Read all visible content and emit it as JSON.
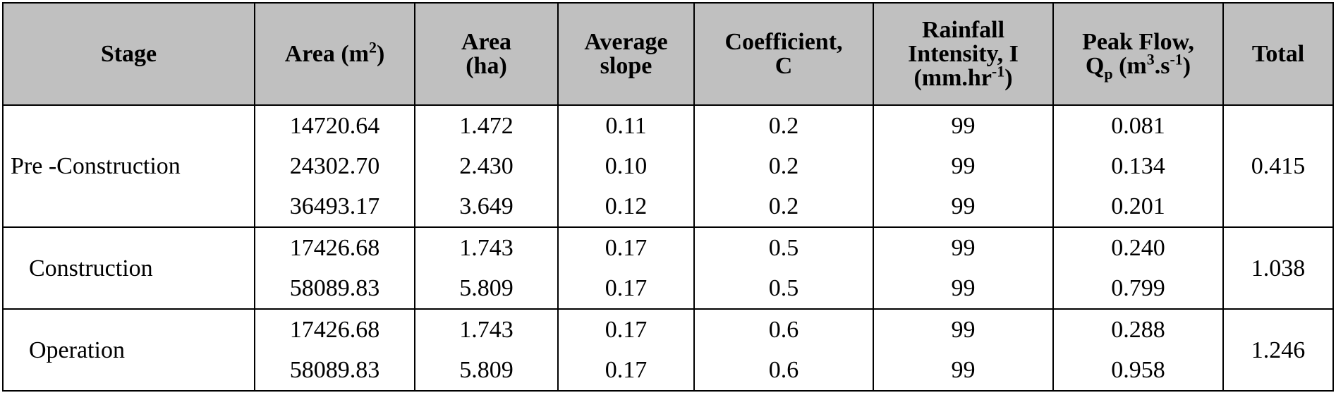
{
  "table": {
    "headers": [
      {
        "lines": [
          [
            {
              "text": "Stage"
            }
          ]
        ]
      },
      {
        "lines": [
          [
            {
              "text": "Area (m"
            },
            {
              "text": "2",
              "sup": true
            },
            {
              "text": ")"
            }
          ]
        ]
      },
      {
        "lines": [
          [
            {
              "text": "Area"
            }
          ],
          [
            {
              "text": "(ha)"
            }
          ]
        ]
      },
      {
        "lines": [
          [
            {
              "text": "Average"
            }
          ],
          [
            {
              "text": "slope"
            }
          ]
        ]
      },
      {
        "lines": [
          [
            {
              "text": "Coefficient,"
            }
          ],
          [
            {
              "text": "C"
            }
          ]
        ]
      },
      {
        "lines": [
          [
            {
              "text": "Rainfall"
            }
          ],
          [
            {
              "text": "Intensity, I"
            }
          ],
          [
            {
              "text": "(mm.hr"
            },
            {
              "text": "-1",
              "sup": true
            },
            {
              "text": ")"
            }
          ]
        ]
      },
      {
        "lines": [
          [
            {
              "text": "Peak Flow,"
            }
          ],
          [
            {
              "text": "Q"
            },
            {
              "text": "p",
              "sub": true
            },
            {
              "text": " (m"
            },
            {
              "text": "3",
              "sup": true
            },
            {
              "text": ".s"
            },
            {
              "text": "-1",
              "sup": true
            },
            {
              "text": ")"
            }
          ]
        ]
      },
      {
        "lines": [
          [
            {
              "text": "Total"
            }
          ]
        ]
      }
    ],
    "groups": [
      {
        "stage": "Pre -Construction",
        "total": "0.415",
        "rows": [
          [
            "14720.64",
            "1.472",
            "0.11",
            "0.2",
            "99",
            "0.081"
          ],
          [
            "24302.70",
            "2.430",
            "0.10",
            "0.2",
            "99",
            "0.134"
          ],
          [
            "36493.17",
            "3.649",
            "0.12",
            "0.2",
            "99",
            "0.201"
          ]
        ]
      },
      {
        "stage": "Construction",
        "total": "1.038",
        "rows": [
          [
            "17426.68",
            "1.743",
            "0.17",
            "0.5",
            "99",
            "0.240"
          ],
          [
            "58089.83",
            "5.809",
            "0.17",
            "0.5",
            "99",
            "0.799"
          ]
        ]
      },
      {
        "stage": "Operation",
        "total": "1.246",
        "rows": [
          [
            "17426.68",
            "1.743",
            "0.17",
            "0.6",
            "99",
            "0.288"
          ],
          [
            "58089.83",
            "5.809",
            "0.17",
            "0.6",
            "99",
            "0.958"
          ]
        ]
      }
    ]
  }
}
